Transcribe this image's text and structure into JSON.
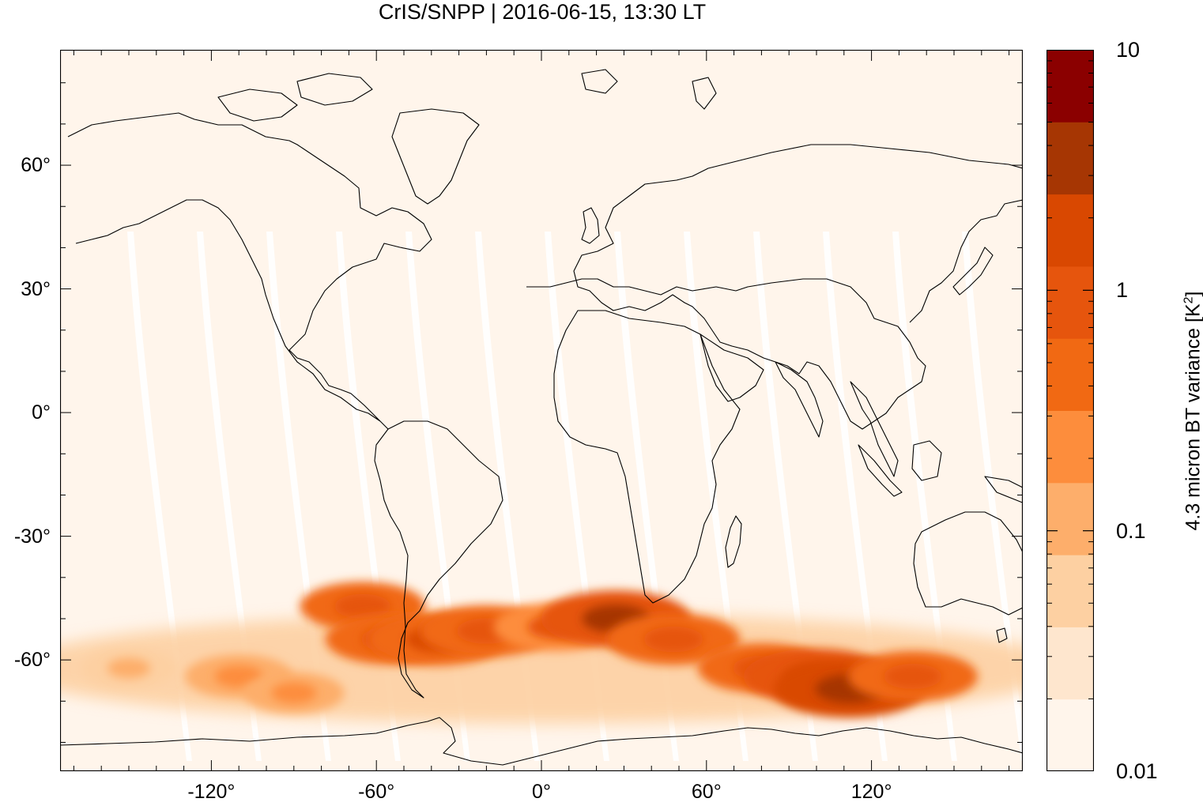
{
  "title": "CrIS/SNPP | 2016-06-15, 13:30 LT",
  "colorbar": {
    "label_prefix": "4.3 micron BT variance [K",
    "label_sup": "2",
    "label_suffix": "]",
    "scale": "log",
    "range": [
      0.01,
      10
    ],
    "tick_labels": [
      "10",
      "1",
      "0.1",
      "0.01"
    ],
    "colors": [
      "#fff5eb",
      "#fee6ce",
      "#fdd0a2",
      "#fdae6b",
      "#fd8d3c",
      "#f16913",
      "#e6550d",
      "#d94801",
      "#a63603",
      "#8b0000"
    ]
  },
  "chart_data": {
    "type": "heatmap",
    "title": "CrIS/SNPP | 2016-06-15, 13:30 LT",
    "xlabel": "",
    "ylabel": "",
    "xlim": [
      -175,
      175
    ],
    "ylim": [
      -87,
      88
    ],
    "x_tick_labels": [
      "-120°",
      "-60°",
      "0°",
      "60°",
      "120°"
    ],
    "y_tick_labels": [
      "60°",
      "30°",
      "0°",
      "-30°",
      "-60°"
    ],
    "x_ticks": [
      -120,
      -60,
      0,
      60,
      120
    ],
    "y_ticks": [
      60,
      30,
      0,
      -30,
      -60
    ],
    "colorbar_label": "4.3 micron BT variance [K2]",
    "colorbar_scale": "log",
    "colorbar_range": [
      0.01,
      10
    ],
    "background_level": 0.01,
    "regions": [
      {
        "lon": -65,
        "lat": -47,
        "value": 0.8
      },
      {
        "lon": -55,
        "lat": -55,
        "value": 1.0
      },
      {
        "lon": -38,
        "lat": -55,
        "value": 1.5
      },
      {
        "lon": -20,
        "lat": -53,
        "value": 1.2
      },
      {
        "lon": 5,
        "lat": -52,
        "value": 0.7
      },
      {
        "lon": 27,
        "lat": -50,
        "value": 3.0
      },
      {
        "lon": 48,
        "lat": -55,
        "value": 1.2
      },
      {
        "lon": 80,
        "lat": -62,
        "value": 0.9
      },
      {
        "lon": 100,
        "lat": -64,
        "value": 2.5
      },
      {
        "lon": 112,
        "lat": -67,
        "value": 3.5
      },
      {
        "lon": 135,
        "lat": -64,
        "value": 1.0
      },
      {
        "lon": -110,
        "lat": -64,
        "value": 0.3
      },
      {
        "lon": -150,
        "lat": -62,
        "value": 0.15
      },
      {
        "lon": -90,
        "lat": -68,
        "value": 0.2
      }
    ]
  }
}
